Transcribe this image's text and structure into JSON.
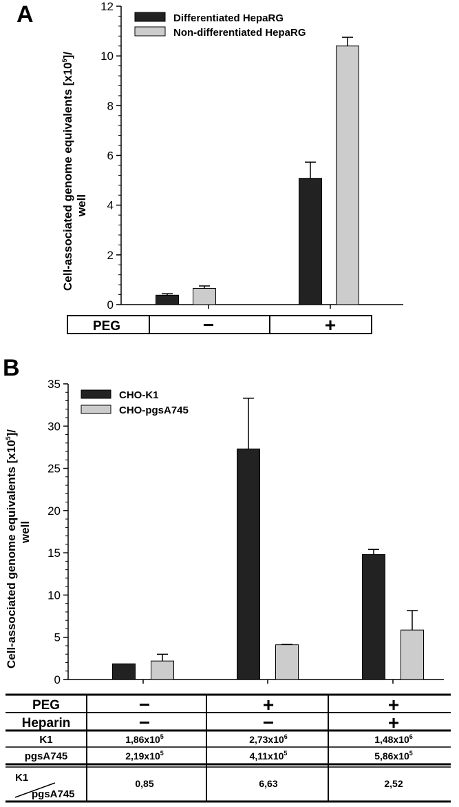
{
  "panels": [
    {
      "letter": "A",
      "ylabel_line1": "Cell-associated genome equivalents [x10",
      "ylabel_sup": "5",
      "ylabel_line1_end": "]/",
      "ylabel_line2": "well",
      "table": {
        "rows": [
          {
            "label": "PEG",
            "cells": [
              "−",
              "+"
            ]
          }
        ]
      }
    },
    {
      "letter": "B",
      "ylabel_line1": "Cell-associated genome equivalents [x10",
      "ylabel_sup": "5",
      "ylabel_line1_end": "]/",
      "ylabel_line2": "well",
      "table": {
        "rows": [
          {
            "label": "PEG",
            "cells": [
              "−",
              "+",
              "+"
            ]
          },
          {
            "label": "Heparin",
            "cells": [
              "−",
              "−",
              "+"
            ]
          },
          {
            "label": "K1",
            "cells": [
              {
                "base": "1,86x10",
                "exp": "5"
              },
              {
                "base": "2,73x10",
                "exp": "6"
              },
              {
                "base": "1,48x10",
                "exp": "6"
              }
            ]
          },
          {
            "label": "pgsA745",
            "cells": [
              {
                "base": "2,19x10",
                "exp": "5"
              },
              {
                "base": "4,11x10",
                "exp": "5"
              },
              {
                "base": "5,86x10",
                "exp": "5"
              }
            ]
          },
          {
            "label_top": "K1",
            "label_bottom": "pgsA745",
            "cells": [
              "0,85",
              "6,63",
              "2,52"
            ]
          }
        ]
      }
    }
  ],
  "colors": {
    "dark": "#222222",
    "light": "#cccccc"
  },
  "chart_data": [
    {
      "type": "bar",
      "categories": [
        "−",
        "+"
      ],
      "series": [
        {
          "name": "Differentiated HepaRG",
          "color": "#222222",
          "values": [
            0.38,
            5.08
          ],
          "errors": [
            0.06,
            0.65
          ]
        },
        {
          "name": "Non-differentiated HepaRG",
          "color": "#cccccc",
          "values": [
            0.65,
            10.4
          ],
          "errors": [
            0.1,
            0.35
          ]
        }
      ],
      "ylim": [
        0,
        12
      ],
      "yticks": [
        0,
        2,
        4,
        6,
        8,
        10,
        12
      ],
      "legend": "top-left"
    },
    {
      "type": "bar",
      "categories": [
        "PEG − / Heparin −",
        "PEG + / Heparin −",
        "PEG + / Heparin +"
      ],
      "series": [
        {
          "name": "CHO-K1",
          "color": "#222222",
          "values": [
            1.86,
            27.3,
            14.8
          ],
          "errors": [
            0.0,
            6.0,
            0.6
          ]
        },
        {
          "name": "CHO-pgsA745",
          "color": "#cccccc",
          "values": [
            2.19,
            4.11,
            5.86
          ],
          "errors": [
            0.8,
            0.05,
            2.3
          ]
        }
      ],
      "ylim": [
        0,
        35
      ],
      "yticks": [
        0,
        5,
        10,
        15,
        20,
        25,
        30,
        35
      ],
      "legend": "top-left"
    }
  ]
}
